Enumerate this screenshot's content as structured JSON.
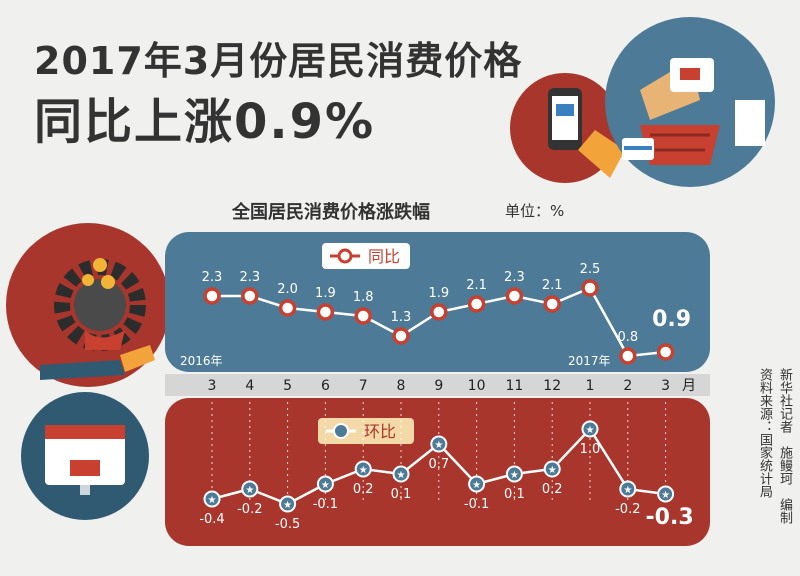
{
  "header": {
    "title_line1": "2017年3月份居民消费价格",
    "title_line2": "同比上涨0.9%"
  },
  "chart_data": {
    "type": "line",
    "title": "全国居民消费价格涨跌幅",
    "unit": "单位：%",
    "categories": [
      "3",
      "4",
      "5",
      "6",
      "7",
      "8",
      "9",
      "10",
      "11",
      "12",
      "1",
      "2",
      "3"
    ],
    "month_suffix": "月",
    "year_labels": {
      "start": "2016年",
      "new_year": "2017年"
    },
    "series": [
      {
        "name": "同比",
        "values": [
          2.3,
          2.3,
          2.0,
          1.9,
          1.8,
          1.3,
          1.9,
          2.1,
          2.3,
          2.1,
          2.5,
          0.8,
          0.9
        ],
        "labels": [
          "2.3",
          "2.3",
          "2.0",
          "1.9",
          "1.8",
          "1.3",
          "1.9",
          "2.1",
          "2.3",
          "2.1",
          "2.5",
          "0.8",
          "0.9"
        ]
      },
      {
        "name": "环比",
        "values": [
          -0.4,
          -0.2,
          -0.5,
          -0.1,
          0.2,
          0.1,
          0.7,
          -0.1,
          0.1,
          0.2,
          1.0,
          -0.2,
          -0.3
        ],
        "labels": [
          "-0.4",
          "-0.2",
          "-0.5",
          "-0.1",
          "0.2",
          "0.1",
          "0.7",
          "-0.1",
          "0.1",
          "0.2",
          "1.0",
          "-0.2",
          "-0.3"
        ]
      }
    ]
  },
  "colors": {
    "blue_panel": "#4d7a96",
    "red_panel": "#a8362d",
    "dark_circle": "#2f5a72",
    "marker_ring": "#ffffff",
    "marker_fill": "#c8402f"
  },
  "credits": {
    "reporter": "新华社记者　施鳗珂　编制",
    "source": "资料来源：国家统计局"
  }
}
